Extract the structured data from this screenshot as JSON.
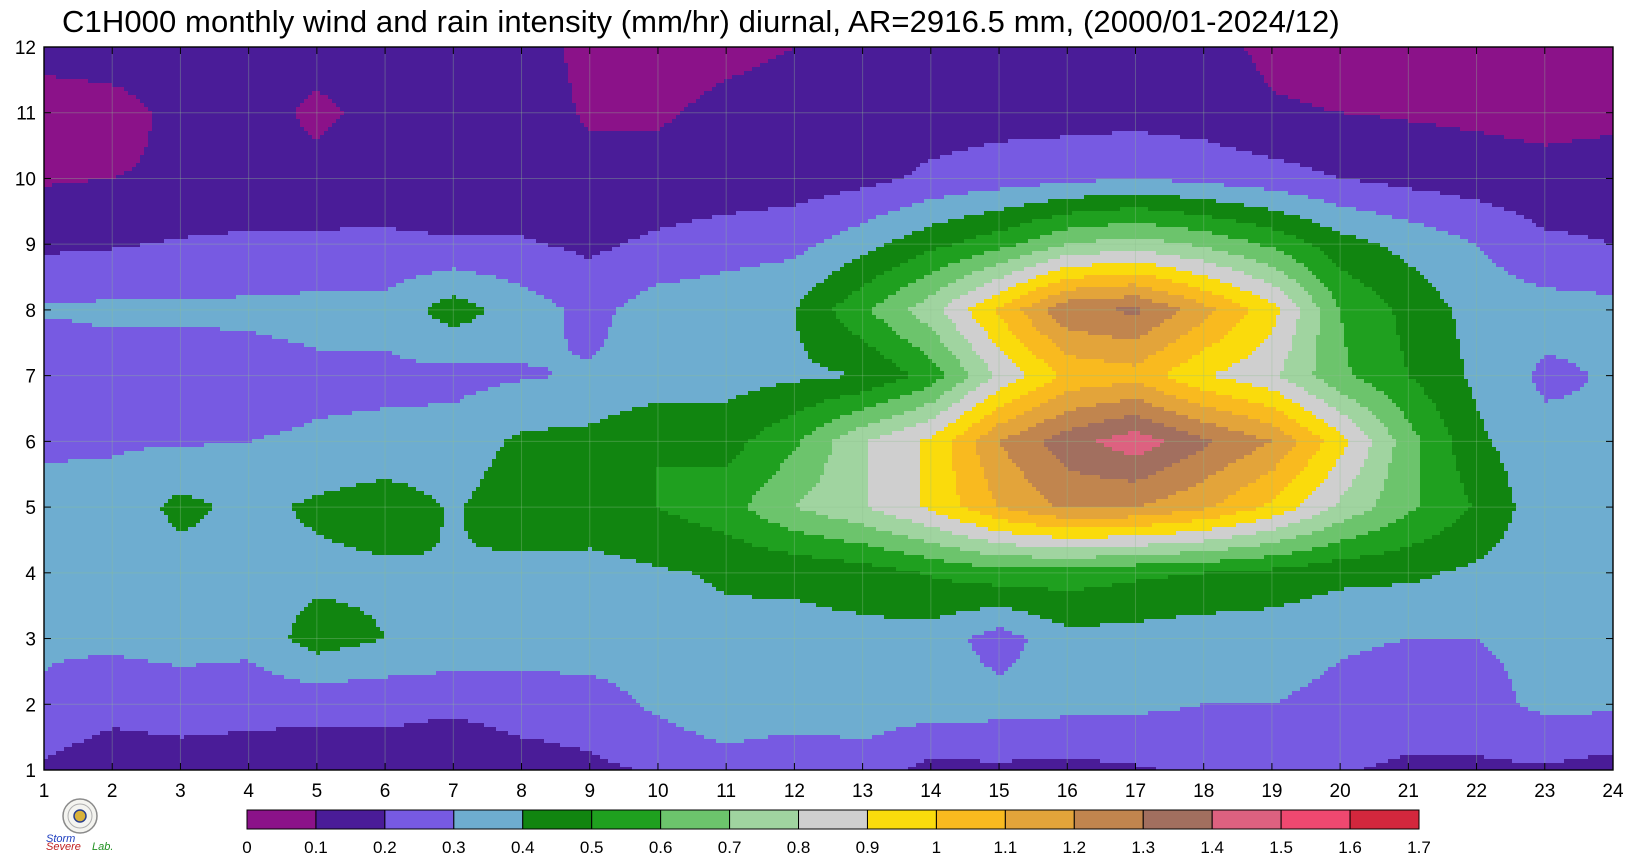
{
  "chart_data": {
    "type": "heatmap",
    "title": "C1H000 monthly wind and rain intensity (mm/hr) diurnal, AR=2916.5 mm, (2000/01-2024/12)",
    "xlabel": "",
    "ylabel": "",
    "x_ticks": [
      "1",
      "2",
      "3",
      "4",
      "5",
      "6",
      "7",
      "8",
      "9",
      "10",
      "11",
      "12",
      "13",
      "14",
      "15",
      "16",
      "17",
      "18",
      "19",
      "20",
      "21",
      "22",
      "23",
      "24"
    ],
    "y_ticks": [
      "1",
      "2",
      "3",
      "4",
      "5",
      "6",
      "7",
      "8",
      "9",
      "10",
      "11",
      "12"
    ],
    "xlim": [
      1,
      24
    ],
    "ylim": [
      1,
      12
    ],
    "colorbar": {
      "levels": [
        0,
        0.1,
        0.2,
        0.3,
        0.4,
        0.5,
        0.6,
        0.7,
        0.8,
        0.9,
        1,
        1.1,
        1.2,
        1.3,
        1.4,
        1.5,
        1.6,
        1.7
      ],
      "labels": [
        "0",
        "0.1",
        "0.2",
        "0.3",
        "0.4",
        "0.5",
        "0.6",
        "0.7",
        "0.8",
        "0.9",
        "1",
        "1.1",
        "1.2",
        "1.3",
        "1.4",
        "1.5",
        "1.6",
        "1.7"
      ],
      "colors": [
        "#8b1289",
        "#4a1c98",
        "#775ae2",
        "#6eadd0",
        "#118510",
        "#1fa01f",
        "#6cc46c",
        "#a0d4a0",
        "#cfcfcf",
        "#fadb0c",
        "#f9ba1f",
        "#e3a43a",
        "#c1854e",
        "#a26f5f",
        "#dd6180",
        "#ef4870",
        "#d3273d"
      ],
      "contour_line_color": "#f5a623"
    },
    "grid": true,
    "values": [
      [
        0.18,
        0.13,
        0.14,
        0.14,
        0.14,
        0.15,
        0.12,
        0.16,
        0.18,
        0.21,
        0.25,
        0.21,
        0.25,
        0.17,
        0.18,
        0.17,
        0.19,
        0.22,
        0.21,
        0.21,
        0.18,
        0.18,
        0.19,
        0.16
      ],
      [
        0.29,
        0.24,
        0.26,
        0.24,
        0.23,
        0.23,
        0.22,
        0.24,
        0.25,
        0.32,
        0.38,
        0.37,
        0.36,
        0.35,
        0.34,
        0.33,
        0.32,
        0.3,
        0.3,
        0.28,
        0.26,
        0.27,
        0.32,
        0.32
      ],
      [
        0.31,
        0.32,
        0.33,
        0.33,
        0.45,
        0.4,
        0.38,
        0.36,
        0.36,
        0.36,
        0.38,
        0.37,
        0.37,
        0.36,
        0.25,
        0.37,
        0.36,
        0.34,
        0.34,
        0.31,
        0.3,
        0.3,
        0.32,
        0.33
      ],
      [
        0.33,
        0.34,
        0.35,
        0.36,
        0.37,
        0.38,
        0.4,
        0.37,
        0.36,
        0.39,
        0.41,
        0.42,
        0.45,
        0.51,
        0.56,
        0.55,
        0.52,
        0.5,
        0.47,
        0.43,
        0.42,
        0.38,
        0.34,
        0.31
      ],
      [
        0.32,
        0.33,
        0.43,
        0.37,
        0.42,
        0.46,
        0.39,
        0.46,
        0.47,
        0.5,
        0.56,
        0.7,
        0.79,
        0.92,
        1.1,
        1.22,
        1.2,
        1.12,
        0.98,
        0.78,
        0.62,
        0.49,
        0.33,
        0.31
      ],
      [
        0.29,
        0.29,
        0.29,
        0.3,
        0.31,
        0.32,
        0.34,
        0.42,
        0.43,
        0.5,
        0.46,
        0.58,
        0.79,
        0.92,
        1.2,
        1.36,
        1.46,
        1.32,
        1.2,
        0.94,
        0.64,
        0.42,
        0.33,
        0.31
      ],
      [
        0.22,
        0.25,
        0.24,
        0.26,
        0.28,
        0.28,
        0.27,
        0.29,
        0.31,
        0.33,
        0.36,
        0.38,
        0.4,
        0.54,
        0.82,
        1.02,
        1.06,
        0.91,
        0.82,
        0.62,
        0.5,
        0.38,
        0.28,
        0.31
      ],
      [
        0.31,
        0.32,
        0.32,
        0.32,
        0.33,
        0.33,
        0.45,
        0.35,
        0.27,
        0.35,
        0.37,
        0.4,
        0.58,
        0.76,
        1.02,
        1.28,
        1.32,
        1.14,
        0.94,
        0.6,
        0.47,
        0.36,
        0.34,
        0.33
      ],
      [
        0.18,
        0.19,
        0.21,
        0.22,
        0.22,
        0.22,
        0.21,
        0.21,
        0.18,
        0.22,
        0.25,
        0.27,
        0.36,
        0.47,
        0.56,
        0.7,
        0.75,
        0.68,
        0.58,
        0.44,
        0.37,
        0.3,
        0.22,
        0.2
      ],
      [
        0.09,
        0.1,
        0.11,
        0.12,
        0.13,
        0.14,
        0.13,
        0.13,
        0.13,
        0.13,
        0.14,
        0.15,
        0.17,
        0.22,
        0.25,
        0.27,
        0.3,
        0.27,
        0.24,
        0.2,
        0.17,
        0.15,
        0.13,
        0.14
      ],
      [
        0.06,
        0.07,
        0.12,
        0.14,
        0.08,
        0.13,
        0.14,
        0.14,
        0.09,
        0.09,
        0.12,
        0.13,
        0.14,
        0.15,
        0.16,
        0.16,
        0.16,
        0.15,
        0.11,
        0.1,
        0.09,
        0.08,
        0.07,
        0.08
      ],
      [
        0.13,
        0.14,
        0.14,
        0.14,
        0.14,
        0.14,
        0.14,
        0.13,
        0.08,
        0.06,
        0.08,
        0.1,
        0.13,
        0.15,
        0.15,
        0.15,
        0.14,
        0.13,
        0.08,
        0.06,
        0.06,
        0.06,
        0.06,
        0.07
      ]
    ]
  },
  "logo": {
    "text_a": "Severe",
    "text_b": "Storm",
    "text_c": "Lab."
  }
}
